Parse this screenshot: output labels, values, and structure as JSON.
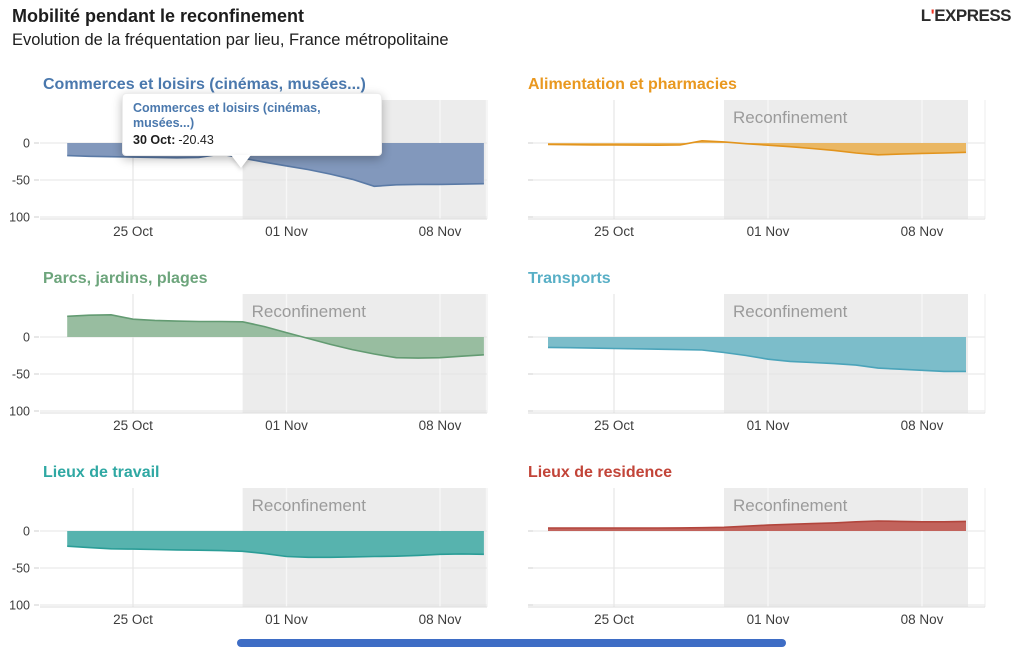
{
  "header": {
    "title": "Mobilité pendant le reconfinement",
    "subtitle": "Evolution de la fréquentation par lieu, France métropolitaine"
  },
  "logo": {
    "l": "L",
    "apostrophe": "'",
    "rest": "EXPRESS",
    "accent_color": "#ee3524",
    "text_color": "#2b2b2b"
  },
  "band": {
    "label": "Reconfinement",
    "fill": "#ececec",
    "label_color": "#9b9b9b"
  },
  "axes": {
    "x_tick_labels": [
      "25 Oct",
      "01 Nov",
      "08 Nov"
    ],
    "x_tick_indexes": [
      3,
      10,
      17
    ],
    "y_tick_labels": [
      "0",
      "-50",
      "-100"
    ],
    "y_tick_values": [
      0,
      -50,
      -100
    ],
    "ylim": [
      -105,
      55
    ],
    "grid": true
  },
  "x_dates": [
    "22 Oct",
    "23 Oct",
    "24 Oct",
    "25 Oct",
    "26 Oct",
    "27 Oct",
    "28 Oct",
    "29 Oct",
    "30 Oct",
    "31 Oct",
    "01 Nov",
    "02 Nov",
    "03 Nov",
    "04 Nov",
    "05 Nov",
    "06 Nov",
    "07 Nov",
    "08 Nov",
    "09 Nov",
    "10 Nov"
  ],
  "reconfinement_start_index": 8,
  "tooltip": {
    "title": "Commerces et loisirs (cinémas, musées...)",
    "date_label": "30 Oct:",
    "value": "-20.43",
    "title_color": "#4a78ad"
  },
  "scrollbar_color": "#3e6dc5",
  "chart_data": [
    {
      "type": "area",
      "title": "Commerces et loisirs (cinémas, musées...)",
      "title_color": "#4a78ad",
      "fill": "#8298bc",
      "stroke": "#5a7aa6",
      "values": [
        -17,
        -18,
        -18.5,
        -19,
        -19.5,
        -20,
        -19.5,
        -15,
        -20.43,
        -26,
        -31,
        -36,
        -42,
        -49,
        -58.5,
        -56.5,
        -56,
        -56,
        -55.5,
        -55
      ],
      "highlight": {
        "date": "30 Oct",
        "value": -20.43
      }
    },
    {
      "type": "area",
      "title": "Alimentation et pharmacies",
      "title_color": "#e9981f",
      "fill": "#eab763",
      "stroke": "#e2941d",
      "values": [
        -2,
        -2.3,
        -2.5,
        -2.5,
        -2.8,
        -3,
        -2.5,
        3,
        1.5,
        -1,
        -3,
        -5,
        -7.5,
        -10,
        -13.5,
        -16,
        -15,
        -14,
        -13.5,
        -12.5
      ]
    },
    {
      "type": "area",
      "title": "Parcs, jardins, plages",
      "title_color": "#6da57c",
      "fill": "#98bda0",
      "stroke": "#639b72",
      "values": [
        28,
        29.5,
        30,
        24,
        22.5,
        21.5,
        21,
        21,
        20.5,
        14,
        6,
        -2,
        -10,
        -17,
        -23,
        -28,
        -28.5,
        -28,
        -26,
        -24
      ]
    },
    {
      "type": "area",
      "title": "Transports",
      "title_color": "#58afc6",
      "fill": "#7cbdca",
      "stroke": "#4ba4ba",
      "values": [
        -14,
        -14.5,
        -15,
        -15.5,
        -16,
        -16.5,
        -17,
        -17.5,
        -21,
        -25,
        -30,
        -33,
        -34.5,
        -36,
        -38,
        -42,
        -43.5,
        -45,
        -46.5,
        -46.5
      ]
    },
    {
      "type": "area",
      "title": "Lieux de travail",
      "title_color": "#2fa8a3",
      "fill": "#57b3ae",
      "stroke": "#2b9d97",
      "values": [
        -20.5,
        -22.5,
        -24,
        -24.5,
        -25,
        -25.5,
        -26,
        -26.5,
        -27.5,
        -30.5,
        -34.5,
        -35.5,
        -35.5,
        -35,
        -34.5,
        -34,
        -33,
        -31.5,
        -31,
        -31.5
      ]
    },
    {
      "type": "area",
      "title": "Lieux de residence",
      "title_color": "#c24438",
      "fill": "#c2635c",
      "stroke": "#b2453c",
      "values": [
        4,
        4,
        4,
        4,
        4,
        4,
        4.2,
        4.5,
        5,
        6.5,
        8,
        9,
        10,
        11,
        12.5,
        13.5,
        13,
        12.5,
        12.5,
        13
      ]
    }
  ]
}
